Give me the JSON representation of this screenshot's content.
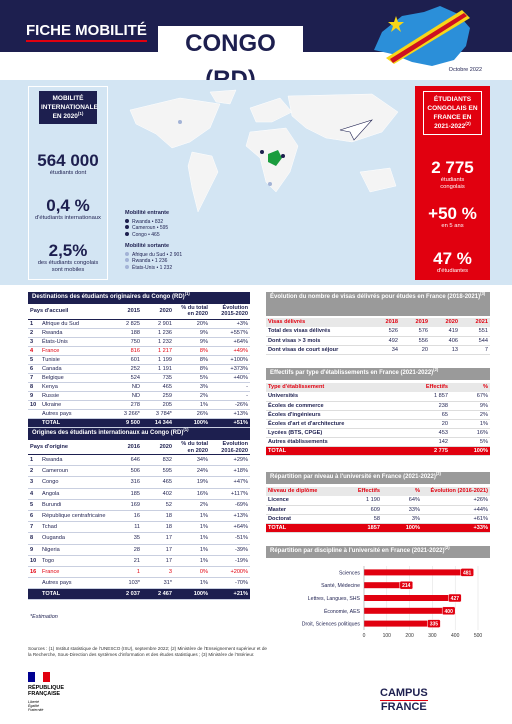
{
  "header": {
    "title": "FICHE MOBILITÉ",
    "country": "CONGO (RD)",
    "date": "Octobre 2022"
  },
  "mobility": {
    "title": "MOBILITÉ INTERNATIONALE EN 2020",
    "ref": "(1)",
    "students": "564 000",
    "students_label": "étudiants dont",
    "intl_share": "0,4 %",
    "intl_label": "d'étudiants internationaux",
    "mobile_share": "2,5%",
    "mobile_label": "des étudiants congolais sont mobiles"
  },
  "map_legend": {
    "incoming_title": "Mobilité entrante",
    "incoming": [
      "Rwanda • 832",
      "Cameroun • 595",
      "Congo • 465"
    ],
    "outgoing_title": "Mobilité sortante",
    "outgoing": [
      "Afrique du Sud • 2 901",
      "Rwanda • 1 236",
      "États-Unis • 1 232"
    ]
  },
  "france": {
    "title": "ÉTUDIANTS CONGOLAIS EN FRANCE EN 2021-2022",
    "ref": "(2)",
    "students": "2 775",
    "students_label": "étudiants congolais",
    "growth": "+50 %",
    "growth_label": "en 5 ans",
    "female": "47 %",
    "female_label": "d'étudiantes"
  },
  "destinations": {
    "title": "Destinations des étudiants originaires du Congo (RD)",
    "ref": "(1)",
    "highlight_row": 3,
    "highlight_color": "#e1000f",
    "columns": [
      "Pays d'accueil",
      "2015",
      "2020",
      "% du total en 2020",
      "Évolution 2015-2020"
    ],
    "rows": [
      [
        "1",
        "Afrique du Sud",
        "2 825",
        "2 901",
        "20%",
        "+3%"
      ],
      [
        "2",
        "Rwanda",
        "188",
        "1 236",
        "9%",
        "+557%"
      ],
      [
        "3",
        "États-Unis",
        "750",
        "1 232",
        "9%",
        "+64%"
      ],
      [
        "4",
        "France",
        "816",
        "1 217",
        "8%",
        "+49%"
      ],
      [
        "5",
        "Tunisie",
        "601",
        "1 199",
        "8%",
        "+100%"
      ],
      [
        "6",
        "Canada",
        "252",
        "1 191",
        "8%",
        "+373%"
      ],
      [
        "7",
        "Belgique",
        "524",
        "735",
        "5%",
        "+40%"
      ],
      [
        "8",
        "Kenya",
        "ND",
        "465",
        "3%",
        "-"
      ],
      [
        "9",
        "Russie",
        "ND",
        "259",
        "2%",
        "-"
      ],
      [
        "10",
        "Ukraine",
        "278",
        "205",
        "1%",
        "-26%"
      ],
      [
        null,
        "Autres pays",
        "3 266*",
        "3 784*",
        "26%",
        "+13%"
      ],
      [
        null,
        "TOTAL",
        "9 500",
        "14 344",
        "100%",
        "+51%"
      ]
    ]
  },
  "origins": {
    "title": "Origines des étudiants internationaux au Congo (RD)",
    "ref": "(1)",
    "highlight_row": 10,
    "highlight_color": "#e1000f",
    "columns": [
      "Pays d'origine",
      "2016",
      "2020",
      "% du total en 2020",
      "Évolution 2016-2020"
    ],
    "rows": [
      [
        "1",
        "Rwanda",
        "646",
        "832",
        "34%",
        "+29%"
      ],
      [
        "2",
        "Cameroun",
        "506",
        "595",
        "24%",
        "+18%"
      ],
      [
        "3",
        "Congo",
        "316",
        "465",
        "19%",
        "+47%"
      ],
      [
        "4",
        "Angola",
        "185",
        "402",
        "16%",
        "+117%"
      ],
      [
        "5",
        "Burundi",
        "169",
        "52",
        "2%",
        "-69%"
      ],
      [
        "6",
        "République centrafricaine",
        "16",
        "18",
        "1%",
        "+13%"
      ],
      [
        "7",
        "Tchad",
        "11",
        "18",
        "1%",
        "+64%"
      ],
      [
        "8",
        "Ouganda",
        "35",
        "17",
        "1%",
        "-51%"
      ],
      [
        "9",
        "Nigeria",
        "28",
        "17",
        "1%",
        "-39%"
      ],
      [
        "10",
        "Togo",
        "21",
        "17",
        "1%",
        "-19%"
      ],
      [
        "16",
        "France",
        "1",
        "3",
        "0%",
        "+200%"
      ],
      [
        null,
        "Autres pays",
        "103*",
        "31*",
        "1%",
        "-70%"
      ],
      [
        null,
        "TOTAL",
        "2 037",
        "2 467",
        "100%",
        "+21%"
      ]
    ]
  },
  "footnote": "*Estimation",
  "visas": {
    "title": "Évolution du nombre de visas délivrés pour études en France (2018-2021)",
    "ref": "(3)",
    "columns": [
      "Visas délivrés",
      "2018",
      "2019",
      "2020",
      "2021"
    ],
    "rows": [
      [
        "Total des visas délivrés",
        "526",
        "576",
        "419",
        "551"
      ],
      [
        "Dont visas > 3 mois",
        "492",
        "556",
        "406",
        "544"
      ],
      [
        "Dont visas de court séjour",
        "34",
        "20",
        "13",
        "7"
      ]
    ]
  },
  "institutions": {
    "title": "Effectifs par type d'établissements en France (2021-2022)",
    "ref": "(2)",
    "columns": [
      "Type d'établissement",
      "Effectifs",
      "%"
    ],
    "rows": [
      [
        "Universités",
        "1 857",
        "67%"
      ],
      [
        "Écoles de commerce",
        "238",
        "9%"
      ],
      [
        "Écoles d'ingénieurs",
        "65",
        "2%"
      ],
      [
        "Écoles d'art et d'architecture",
        "20",
        "1%"
      ],
      [
        "Lycées (BTS, CPGE)",
        "453",
        "16%"
      ],
      [
        "Autres établissements",
        "142",
        "5%"
      ],
      [
        "TOTAL",
        "2 775",
        "100%"
      ]
    ]
  },
  "levels": {
    "title": "Répartition par niveau à l'université en France (2021-2022)",
    "ref": "(2)",
    "columns": [
      "Niveau de diplôme",
      "Effectifs",
      "%",
      "Évolution (2016-2021)"
    ],
    "rows": [
      [
        "Licence",
        "1 190",
        "64%",
        "+26%"
      ],
      [
        "Master",
        "609",
        "33%",
        "+44%"
      ],
      [
        "Doctorat",
        "58",
        "3%",
        "+61%"
      ],
      [
        "TOTAL",
        "1857",
        "100%",
        "+33%"
      ]
    ]
  },
  "discipline_chart": {
    "type": "bar",
    "title": "Répartition par discipline à l'université en France (2021-2022)",
    "ref": "(2)",
    "categories": [
      "Sciences",
      "Santé, Médecine",
      "Lettres, Langues, SHS",
      "Économie, AES",
      "Droit, Sciences politiques"
    ],
    "values": [
      481,
      214,
      427,
      400,
      335
    ],
    "color": "#e1000f",
    "xlim": [
      0,
      500
    ],
    "xticks": [
      0,
      100,
      200,
      300,
      400,
      500
    ],
    "grid": true
  },
  "sources": "Sources : (1) Institut statistique de l'UNESCO (ISU), septembre 2022; (2) Ministère de l'Enseignement supérieur et de la Recherche, Sous-Direction des systèmes d'information et des études statistiques ; (3) Ministère de l'Intérieur.",
  "logos": {
    "republic": [
      "RÉPUBLIQUE",
      "FRANÇAISE"
    ],
    "motto": [
      "Liberté",
      "Égalité",
      "Fraternité"
    ],
    "campus": [
      "CAMPUS",
      "FRANCE"
    ]
  }
}
